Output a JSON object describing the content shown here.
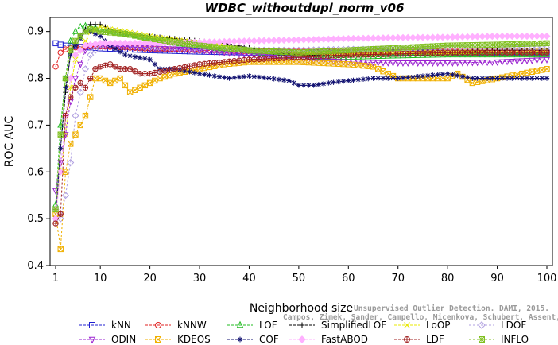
{
  "chart_data": {
    "type": "line",
    "title": "WDBC_withoutdupl_norm_v06",
    "xlabel": "Neighborhood size",
    "ylabel": "ROC AUC",
    "xlim": [
      1,
      100
    ],
    "ylim": [
      0.4,
      0.93
    ],
    "x_ticks": [
      1,
      10,
      20,
      30,
      40,
      50,
      60,
      70,
      80,
      90,
      100
    ],
    "y_ticks": [
      0.4,
      0.5,
      0.6,
      0.7,
      0.8,
      0.9
    ],
    "grid": false,
    "legend_placement": "bottom",
    "series": [
      {
        "name": "kNN",
        "color": "#1f1fd0",
        "marker": "square",
        "points": [
          [
            1,
            0.875
          ],
          [
            2,
            0.872
          ],
          [
            3,
            0.87
          ],
          [
            5,
            0.868
          ],
          [
            8,
            0.866
          ],
          [
            10,
            0.864
          ],
          [
            15,
            0.862
          ],
          [
            20,
            0.86
          ],
          [
            30,
            0.857
          ],
          [
            40,
            0.855
          ],
          [
            50,
            0.855
          ],
          [
            60,
            0.855
          ],
          [
            70,
            0.855
          ],
          [
            80,
            0.855
          ],
          [
            90,
            0.855
          ],
          [
            100,
            0.855
          ]
        ]
      },
      {
        "name": "kNNW",
        "color": "#e02020",
        "marker": "circle",
        "points": [
          [
            1,
            0.825
          ],
          [
            2,
            0.855
          ],
          [
            3,
            0.862
          ],
          [
            5,
            0.866
          ],
          [
            8,
            0.868
          ],
          [
            10,
            0.868
          ],
          [
            15,
            0.866
          ],
          [
            20,
            0.863
          ],
          [
            30,
            0.86
          ],
          [
            40,
            0.858
          ],
          [
            50,
            0.857
          ],
          [
            60,
            0.857
          ],
          [
            70,
            0.857
          ],
          [
            80,
            0.857
          ],
          [
            90,
            0.857
          ],
          [
            100,
            0.857
          ]
        ]
      },
      {
        "name": "LOF",
        "color": "#22bb22",
        "marker": "triangle-up",
        "points": [
          [
            1,
            0.53
          ],
          [
            2,
            0.7
          ],
          [
            3,
            0.8
          ],
          [
            4,
            0.88
          ],
          [
            5,
            0.9
          ],
          [
            6,
            0.91
          ],
          [
            7,
            0.912
          ],
          [
            8,
            0.91
          ],
          [
            10,
            0.905
          ],
          [
            12,
            0.9
          ],
          [
            15,
            0.895
          ],
          [
            20,
            0.885
          ],
          [
            25,
            0.875
          ],
          [
            30,
            0.868
          ],
          [
            35,
            0.862
          ],
          [
            40,
            0.858
          ],
          [
            45,
            0.85
          ],
          [
            50,
            0.845
          ],
          [
            60,
            0.845
          ],
          [
            70,
            0.848
          ],
          [
            80,
            0.85
          ],
          [
            90,
            0.85
          ],
          [
            100,
            0.85
          ]
        ]
      },
      {
        "name": "SimplifiedLOF",
        "color": "#000000",
        "marker": "plus",
        "points": [
          [
            1,
            0.52
          ],
          [
            2,
            0.65
          ],
          [
            3,
            0.77
          ],
          [
            4,
            0.85
          ],
          [
            5,
            0.88
          ],
          [
            7,
            0.905
          ],
          [
            8,
            0.915
          ],
          [
            10,
            0.915
          ],
          [
            12,
            0.905
          ],
          [
            15,
            0.895
          ],
          [
            20,
            0.89
          ],
          [
            25,
            0.885
          ],
          [
            30,
            0.88
          ],
          [
            35,
            0.875
          ],
          [
            40,
            0.865
          ],
          [
            45,
            0.855
          ],
          [
            50,
            0.85
          ],
          [
            55,
            0.848
          ],
          [
            60,
            0.85
          ],
          [
            70,
            0.852
          ],
          [
            80,
            0.855
          ],
          [
            90,
            0.86
          ],
          [
            100,
            0.86
          ]
        ]
      },
      {
        "name": "LoOP",
        "color": "#e8e800",
        "marker": "x",
        "points": [
          [
            1,
            0.52
          ],
          [
            2,
            0.6
          ],
          [
            3,
            0.68
          ],
          [
            4,
            0.78
          ],
          [
            5,
            0.84
          ],
          [
            7,
            0.88
          ],
          [
            8,
            0.9
          ],
          [
            10,
            0.91
          ],
          [
            12,
            0.905
          ],
          [
            15,
            0.9
          ],
          [
            20,
            0.89
          ],
          [
            30,
            0.875
          ],
          [
            40,
            0.86
          ],
          [
            50,
            0.855
          ],
          [
            60,
            0.852
          ],
          [
            70,
            0.855
          ],
          [
            80,
            0.855
          ],
          [
            90,
            0.858
          ],
          [
            100,
            0.86
          ]
        ]
      },
      {
        "name": "LDOF",
        "color": "#b0a0e0",
        "marker": "diamond",
        "points": [
          [
            1,
            0.52
          ],
          [
            2,
            0.5
          ],
          [
            3,
            0.55
          ],
          [
            4,
            0.62
          ],
          [
            5,
            0.72
          ],
          [
            7,
            0.82
          ],
          [
            8,
            0.85
          ],
          [
            10,
            0.87
          ],
          [
            15,
            0.87
          ],
          [
            20,
            0.865
          ],
          [
            30,
            0.862
          ],
          [
            40,
            0.86
          ],
          [
            50,
            0.86
          ],
          [
            60,
            0.862
          ],
          [
            70,
            0.862
          ],
          [
            80,
            0.865
          ],
          [
            90,
            0.865
          ],
          [
            100,
            0.865
          ]
        ]
      },
      {
        "name": "ODIN",
        "color": "#9a20d0",
        "marker": "triangle-down",
        "points": [
          [
            1,
            0.56
          ],
          [
            2,
            0.62
          ],
          [
            3,
            0.68
          ],
          [
            4,
            0.75
          ],
          [
            5,
            0.8
          ],
          [
            7,
            0.86
          ],
          [
            8,
            0.87
          ],
          [
            10,
            0.87
          ],
          [
            15,
            0.868
          ],
          [
            20,
            0.865
          ],
          [
            30,
            0.86
          ],
          [
            40,
            0.85
          ],
          [
            50,
            0.84
          ],
          [
            60,
            0.835
          ],
          [
            70,
            0.833
          ],
          [
            80,
            0.833
          ],
          [
            90,
            0.835
          ],
          [
            100,
            0.84
          ]
        ]
      },
      {
        "name": "KDEOS",
        "color": "#f0b000",
        "marker": "square-x",
        "points": [
          [
            1,
            0.51
          ],
          [
            2,
            0.435
          ],
          [
            3,
            0.6
          ],
          [
            4,
            0.66
          ],
          [
            5,
            0.68
          ],
          [
            6,
            0.7
          ],
          [
            7,
            0.72
          ],
          [
            8,
            0.76
          ],
          [
            9,
            0.8
          ],
          [
            10,
            0.8
          ],
          [
            12,
            0.79
          ],
          [
            14,
            0.8
          ],
          [
            16,
            0.77
          ],
          [
            18,
            0.78
          ],
          [
            20,
            0.79
          ],
          [
            22,
            0.8
          ],
          [
            25,
            0.81
          ],
          [
            30,
            0.82
          ],
          [
            35,
            0.83
          ],
          [
            40,
            0.835
          ],
          [
            50,
            0.835
          ],
          [
            60,
            0.83
          ],
          [
            65,
            0.825
          ],
          [
            70,
            0.8
          ],
          [
            75,
            0.8
          ],
          [
            80,
            0.8
          ],
          [
            82,
            0.81
          ],
          [
            85,
            0.79
          ],
          [
            90,
            0.8
          ],
          [
            95,
            0.81
          ],
          [
            100,
            0.82
          ]
        ]
      },
      {
        "name": "COF",
        "color": "#101070",
        "marker": "asterisk",
        "points": [
          [
            1,
            0.5
          ],
          [
            2,
            0.65
          ],
          [
            3,
            0.78
          ],
          [
            4,
            0.85
          ],
          [
            5,
            0.87
          ],
          [
            7,
            0.9
          ],
          [
            8,
            0.9
          ],
          [
            10,
            0.89
          ],
          [
            12,
            0.87
          ],
          [
            15,
            0.85
          ],
          [
            20,
            0.84
          ],
          [
            22,
            0.82
          ],
          [
            25,
            0.82
          ],
          [
            30,
            0.81
          ],
          [
            33,
            0.805
          ],
          [
            36,
            0.8
          ],
          [
            40,
            0.805
          ],
          [
            44,
            0.8
          ],
          [
            48,
            0.795
          ],
          [
            50,
            0.785
          ],
          [
            53,
            0.785
          ],
          [
            56,
            0.79
          ],
          [
            60,
            0.795
          ],
          [
            65,
            0.8
          ],
          [
            70,
            0.8
          ],
          [
            75,
            0.805
          ],
          [
            80,
            0.81
          ],
          [
            85,
            0.8
          ],
          [
            90,
            0.8
          ],
          [
            95,
            0.8
          ],
          [
            100,
            0.8
          ]
        ]
      },
      {
        "name": "FastABOD",
        "color": "#ffb0ff",
        "marker": "diamond-filled",
        "points": [
          [
            1,
            0.5
          ],
          [
            2,
            0.6
          ],
          [
            3,
            0.72
          ],
          [
            4,
            0.8
          ],
          [
            5,
            0.85
          ],
          [
            7,
            0.87
          ],
          [
            10,
            0.875
          ],
          [
            15,
            0.875
          ],
          [
            20,
            0.875
          ],
          [
            30,
            0.877
          ],
          [
            40,
            0.88
          ],
          [
            50,
            0.882
          ],
          [
            60,
            0.885
          ],
          [
            70,
            0.887
          ],
          [
            80,
            0.888
          ],
          [
            90,
            0.89
          ],
          [
            100,
            0.89
          ]
        ]
      },
      {
        "name": "LDF",
        "color": "#a02020",
        "marker": "circle-plus",
        "points": [
          [
            1,
            0.49
          ],
          [
            2,
            0.51
          ],
          [
            3,
            0.72
          ],
          [
            4,
            0.76
          ],
          [
            5,
            0.78
          ],
          [
            6,
            0.79
          ],
          [
            7,
            0.78
          ],
          [
            8,
            0.8
          ],
          [
            9,
            0.82
          ],
          [
            10,
            0.825
          ],
          [
            12,
            0.83
          ],
          [
            14,
            0.82
          ],
          [
            16,
            0.82
          ],
          [
            18,
            0.81
          ],
          [
            20,
            0.81
          ],
          [
            25,
            0.82
          ],
          [
            30,
            0.83
          ],
          [
            40,
            0.84
          ],
          [
            50,
            0.845
          ],
          [
            60,
            0.85
          ],
          [
            70,
            0.852
          ],
          [
            80,
            0.855
          ],
          [
            90,
            0.855
          ],
          [
            100,
            0.855
          ]
        ]
      },
      {
        "name": "INFLO",
        "color": "#80c020",
        "marker": "square-asterisk",
        "points": [
          [
            1,
            0.52
          ],
          [
            2,
            0.68
          ],
          [
            3,
            0.8
          ],
          [
            4,
            0.86
          ],
          [
            5,
            0.88
          ],
          [
            7,
            0.9
          ],
          [
            8,
            0.905
          ],
          [
            10,
            0.9
          ],
          [
            15,
            0.895
          ],
          [
            20,
            0.885
          ],
          [
            30,
            0.87
          ],
          [
            40,
            0.86
          ],
          [
            50,
            0.855
          ],
          [
            60,
            0.86
          ],
          [
            70,
            0.865
          ],
          [
            80,
            0.87
          ],
          [
            90,
            0.872
          ],
          [
            100,
            0.875
          ]
        ]
      }
    ]
  },
  "watermark": {
    "line1": "Unsupervised Outlier Detection. DAMI, 2015.",
    "line2": "Campos, Zimek, Sander, Campello, Micenkova, Schubert, Assent, Houle"
  }
}
